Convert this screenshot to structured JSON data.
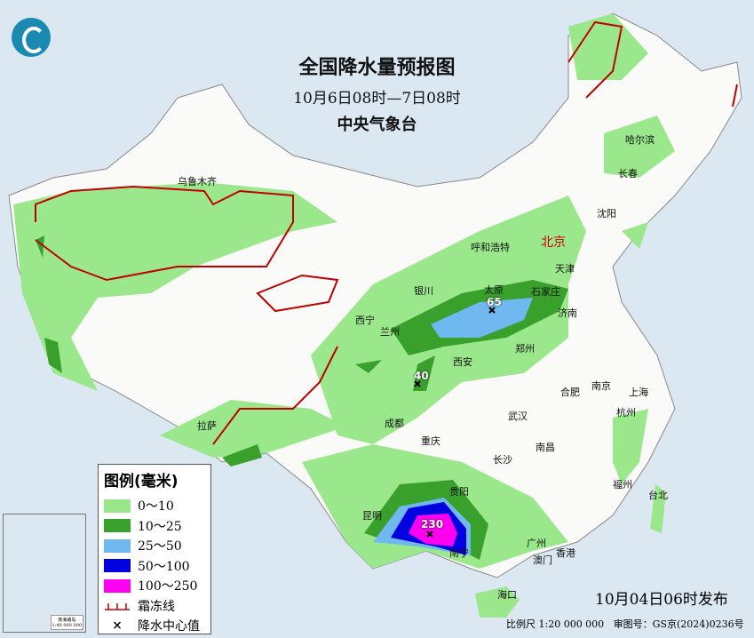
{
  "header": {
    "title": "全国降水量预报图",
    "period": "10月6日08时—7日08时",
    "issuer": "中央气象台"
  },
  "legend": {
    "title": "图例(毫米)",
    "items": [
      {
        "label": "0～10",
        "color": "#9be88c"
      },
      {
        "label": "10～25",
        "color": "#3aa02c"
      },
      {
        "label": "25～50",
        "color": "#6fb8f0"
      },
      {
        "label": "50～100",
        "color": "#0000e0"
      },
      {
        "label": "100～250",
        "color": "#ff00f0"
      },
      {
        "label": "霜冻线",
        "icon": "frost-line-icon",
        "color": "#c00000"
      },
      {
        "label": "降水中心值",
        "icon": "x-mark-icon"
      }
    ]
  },
  "cities": {
    "urumqi": "乌鲁木齐",
    "lhasa": "拉萨",
    "xining": "西宁",
    "lanzhou": "兰州",
    "yinchuan": "银川",
    "hohhot": "呼和浩特",
    "beijing": "北京",
    "tianjin": "天津",
    "taiyuan": "太原",
    "shijiazhuang": "石家庄",
    "jinan": "济南",
    "zhengzhou": "郑州",
    "xian": "西安",
    "chengdu": "成都",
    "chongqing": "重庆",
    "guiyang": "贵阳",
    "kunming": "昆明",
    "nanning": "南宁",
    "guangzhou": "广州",
    "macau": "澳门",
    "hongkong": "香港",
    "haikou": "海口",
    "changsha": "长沙",
    "nanchang": "南昌",
    "wuhan": "武汉",
    "hefei": "合肥",
    "nanjing": "南京",
    "shanghai": "上海",
    "hangzhou": "杭州",
    "fuzhou": "福州",
    "taipei": "台北",
    "harbin": "哈尔滨",
    "changchun": "长春",
    "shenyang": "沈阳"
  },
  "center_values": {
    "shanxi": "65",
    "sichuan": "40",
    "guangxi": "230"
  },
  "inset": {
    "caption": "南海诸岛",
    "scale": "1:40 000 000"
  },
  "footer": {
    "issued": "10月04日06时发布",
    "scale": "比例尺 1:20 000 000",
    "approval": "审图号：GS京(2024)0236号"
  }
}
